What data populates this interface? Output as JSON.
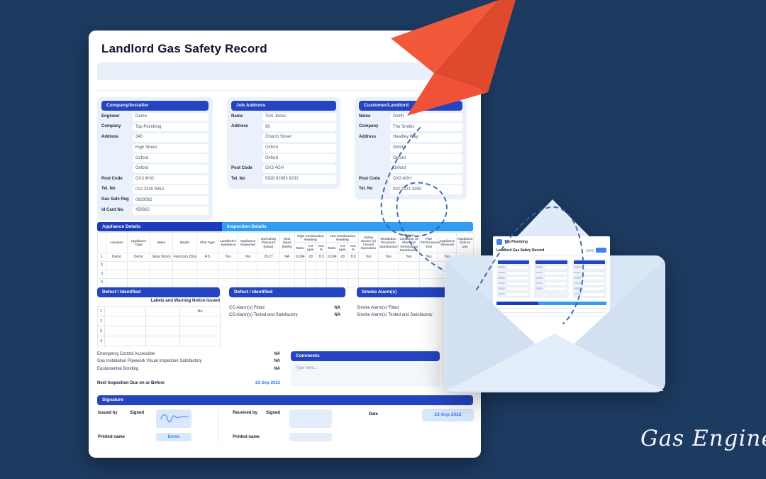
{
  "colors": {
    "background": "#1d3a60",
    "header_blue": "#2544c2",
    "table_dark_blue": "#1d3cbb",
    "table_light_blue": "#309df2",
    "link_blue": "#3b82f6",
    "plane_orange": "#f2583a",
    "plane_orange_dark": "#dd4a2c"
  },
  "logo": {
    "text": "Gas Engineer"
  },
  "page": {
    "title": "Landlord Gas Safety Record"
  },
  "sections": [
    {
      "header": "Company/Installer",
      "fields": [
        {
          "label": "Engineer",
          "value": "Demo"
        },
        {
          "label": "Company",
          "value": "Top Plumbing"
        },
        {
          "label": "Address",
          "value": "340"
        },
        {
          "label": "",
          "value": "High Street"
        },
        {
          "label": "",
          "value": "Oxford"
        },
        {
          "label": "",
          "value": "Oxford"
        },
        {
          "label": "Post Code",
          "value": "OX3 4HG"
        },
        {
          "label": "Tel. No",
          "value": "012 2330 9452"
        },
        {
          "label": "Gas Safe Reg",
          "value": "0928082"
        },
        {
          "label": "Id Card No.",
          "value": "456662"
        }
      ]
    },
    {
      "header": "Job Address",
      "fields": [
        {
          "label": "Name",
          "value": "Tom Jones"
        },
        {
          "label": "Address",
          "value": "90"
        },
        {
          "label": "",
          "value": "Church Street"
        },
        {
          "label": "",
          "value": "Oxford"
        },
        {
          "label": "",
          "value": "Oxford"
        },
        {
          "label": "Post Code",
          "value": "OX3 4GH"
        },
        {
          "label": "Tel. No",
          "value": "0928 82893 8232"
        }
      ]
    },
    {
      "header": "Customer/Landlord",
      "fields": [
        {
          "label": "Name",
          "value": "Smith"
        },
        {
          "label": "Company",
          "value": "The Smiths"
        },
        {
          "label": "Address",
          "value": "Headley Way"
        },
        {
          "label": "",
          "value": "Oxford"
        },
        {
          "label": "",
          "value": "Oxford"
        },
        {
          "label": "",
          "value": "Oxford"
        },
        {
          "label": "Post Code",
          "value": "OX3 4GH"
        },
        {
          "label": "Tel. No",
          "value": "092 3321 2450"
        }
      ]
    }
  ],
  "appliance_table": {
    "group_appliance": "Appliance Details",
    "group_inspection": "Inspection Details",
    "columns": [
      {
        "label": ""
      },
      {
        "label": "Location"
      },
      {
        "label": "Appliance Type"
      },
      {
        "label": "Make"
      },
      {
        "label": "Model"
      },
      {
        "label": "Flue Type"
      },
      {
        "label": "Landlord's Appliance"
      },
      {
        "label": "Appliance Inspected"
      },
      {
        "label": "Operating Pressure (mbar)"
      },
      {
        "label": "Heat Input (kW/h)"
      },
      {
        "label": "High Combustion Reading",
        "sub": [
          "Ratio",
          "CO ppm",
          "CO₂ %"
        ]
      },
      {
        "label": "Low Combustion Reading",
        "sub": [
          "Ratio",
          "CO ppm",
          "CO₂ %"
        ]
      },
      {
        "label": "Safety device (s) Correct Operation"
      },
      {
        "label": "Ventilation Provision Satisfactory"
      },
      {
        "label": "Visual condition of Flue and Termination Satisfactory"
      },
      {
        "label": "Flue Performance Test"
      },
      {
        "label": "Appliance Serviced"
      },
      {
        "label": "Appliance Safe to Use"
      }
    ],
    "rows": [
      [
        "1",
        "Demo",
        "Demo",
        "Glow Worm",
        "Flexicom 20sx",
        "RS",
        "Yes",
        "Yes",
        "20.27",
        "NA",
        "0.004",
        "29",
        "8.3",
        "0.004",
        "29",
        "8.9",
        "Yes",
        "Yes",
        "Yes",
        "Yes",
        "Yes",
        "Yes"
      ],
      [
        "2",
        "",
        "",
        "",
        "",
        "",
        "",
        "",
        "",
        "",
        "",
        "",
        "",
        "",
        "",
        "",
        "",
        "",
        "",
        "",
        "",
        ""
      ],
      [
        "3",
        "",
        "",
        "",
        "",
        "",
        "",
        "",
        "",
        "",
        "",
        "",
        "",
        "",
        "",
        "",
        "",
        "",
        "",
        "",
        "",
        ""
      ],
      [
        "4",
        "",
        "",
        "",
        "",
        "",
        "",
        "",
        "",
        "",
        "",
        "",
        "",
        "",
        "",
        "",
        "",
        "",
        "",
        "",
        "",
        ""
      ]
    ]
  },
  "defects": {
    "header": "Defect / Identified",
    "notice_label": "Labels and Warning Notice Issued",
    "rows": [
      [
        "1",
        "",
        "",
        "No"
      ],
      [
        "2",
        "",
        "",
        ""
      ],
      [
        "3",
        "",
        "",
        ""
      ],
      [
        "4",
        "",
        "",
        ""
      ]
    ]
  },
  "co_alarms": {
    "header": "Defect / Identified",
    "rows": [
      {
        "label": "CO Alarm(s) Fitted",
        "value": "NA"
      },
      {
        "label": "CO Alarm(s) Tested and Satisfactory",
        "value": "NA"
      }
    ]
  },
  "smoke_alarms": {
    "header": "Smoke Alarm(s)",
    "rows": [
      {
        "label": "Smoke Alarm(s) Fitted",
        "value": ""
      },
      {
        "label": "Smoke Alarm(s) Tested and Satisfactory",
        "value": ""
      }
    ]
  },
  "checks": [
    {
      "label": "Emergency Control Accessible",
      "value": "NA"
    },
    {
      "label": "Gas Installation Pipework Visual Inspection Satisfactory",
      "value": "NA"
    },
    {
      "label": "Equipotential Bonding",
      "value": "NA"
    }
  ],
  "next_inspection": {
    "label": "Next Inspection Due on or Before",
    "value": "23-Sep-2023"
  },
  "comments": {
    "header": "Comments",
    "placeholder": "Type here..."
  },
  "signature": {
    "header": "Signature",
    "issued_by": "Issued by",
    "received_by": "Received by",
    "signed": "Signed",
    "printed_name": "Printed name",
    "issued_printed_name": "Demo",
    "date_label": "Date",
    "date_value": "23-Sep-2022"
  },
  "envelope_doc": {
    "company": "Top Plumbing",
    "title": "Landlord Gas Safety Record"
  }
}
